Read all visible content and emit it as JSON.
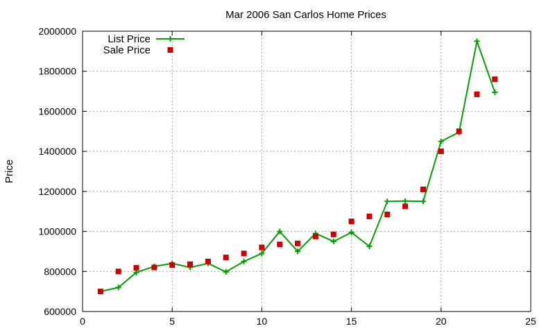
{
  "chart_data": {
    "type": "line",
    "title": "Mar 2006 San Carlos Home Prices",
    "xlabel": "",
    "ylabel": "Price",
    "xlim": [
      0,
      25
    ],
    "ylim": [
      600000,
      2000000
    ],
    "xticks": [
      0,
      5,
      10,
      15,
      20,
      25
    ],
    "yticks": [
      600000,
      800000,
      1000000,
      1200000,
      1400000,
      1600000,
      1800000,
      2000000
    ],
    "grid": true,
    "legend_position": "top-left",
    "series": [
      {
        "name": "List Price",
        "style": "line-with-plus-markers",
        "color": "#00a000",
        "x": [
          1,
          2,
          3,
          4,
          5,
          6,
          7,
          8,
          9,
          10,
          11,
          12,
          13,
          14,
          15,
          16,
          17,
          18,
          19,
          20,
          21,
          22,
          23
        ],
        "y": [
          700000,
          720000,
          795000,
          825000,
          840000,
          820000,
          840000,
          798000,
          850000,
          890000,
          1000000,
          900000,
          990000,
          950000,
          995000,
          925000,
          1150000,
          1152000,
          1150000,
          1450000,
          1495000,
          1950000,
          1695000
        ]
      },
      {
        "name": "Sale Price",
        "style": "square-markers",
        "color": "#cc0000",
        "x": [
          1,
          2,
          3,
          4,
          5,
          6,
          7,
          8,
          9,
          10,
          11,
          12,
          13,
          14,
          15,
          16,
          17,
          18,
          19,
          20,
          21,
          22,
          23
        ],
        "y": [
          700000,
          800000,
          818000,
          820000,
          832000,
          836000,
          850000,
          870000,
          890000,
          920000,
          935000,
          940000,
          975000,
          985000,
          1050000,
          1075000,
          1085000,
          1125000,
          1210000,
          1400000,
          1500000,
          1685000,
          1760000
        ]
      }
    ]
  }
}
